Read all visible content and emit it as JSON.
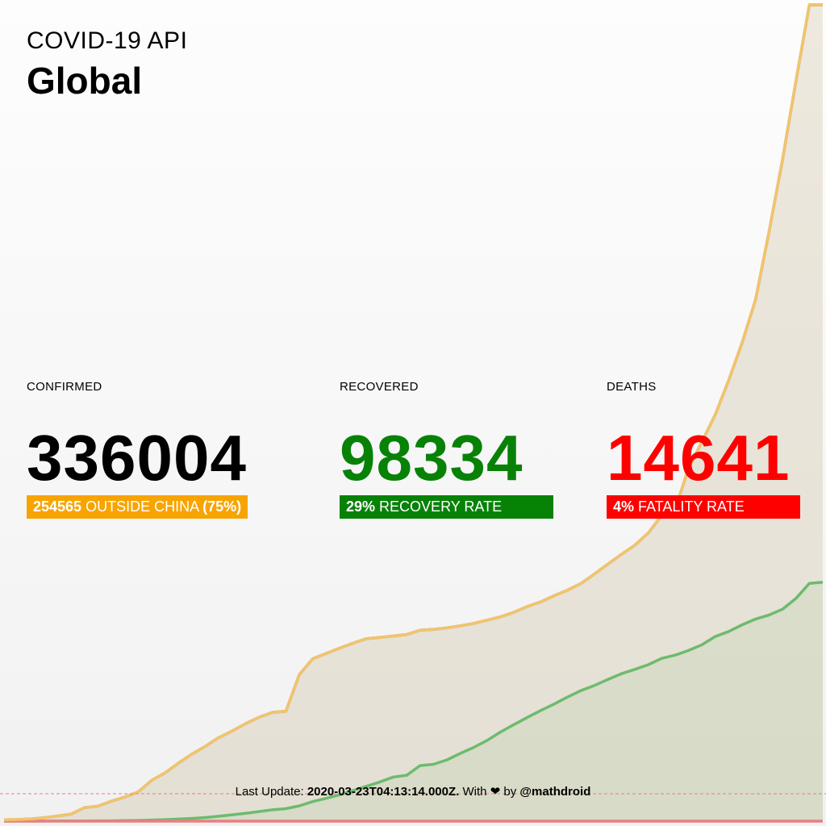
{
  "header": {
    "api_title": "COVID-19 API",
    "region": "Global"
  },
  "stats": {
    "confirmed": {
      "label": "CONFIRMED",
      "value": "336004",
      "badge_value": "254565",
      "badge_text": "OUTSIDE CHINA",
      "badge_pct": "(75%)"
    },
    "recovered": {
      "label": "RECOVERED",
      "value": "98334",
      "badge_value": "29%",
      "badge_text": "RECOVERY RATE"
    },
    "deaths": {
      "label": "DEATHS",
      "value": "14641",
      "badge_value": "4%",
      "badge_text": "FATALITY RATE"
    }
  },
  "footer": {
    "prefix": "Last Update:",
    "timestamp": "2020-03-23T04:13:14.000Z.",
    "with": "With",
    "heart": "❤",
    "by": "by",
    "author": "@mathdroid"
  },
  "colors": {
    "confirmed": "#000000",
    "recovered": "#078207",
    "deaths": "#ff0000",
    "outside_china": "#f7a400",
    "chart_confirmed_line": "#808080",
    "chart_recovered_line": "#6dbb6d",
    "chart_other_line": "#f2c46c",
    "chart_deaths_line": "#e88080"
  },
  "chart_data": {
    "type": "area",
    "series": [
      {
        "values": [
          555,
          654,
          941,
          1434,
          2118,
          2927,
          5578,
          6166,
          8234,
          9927,
          12038,
          16787,
          19881,
          23892,
          27635,
          30817,
          34391,
          37120,
          40150,
          42762,
          44802,
          45221,
          60368,
          66885,
          69030,
          71224,
          73258,
          75136,
          75639,
          76197,
          76823,
          78579,
          78965,
          79568,
          80413,
          81395,
          82754,
          84120,
          86011,
          88369,
          90306,
          92840,
          95120,
          97886,
          101801,
          105847,
          109821,
          113590,
          118620,
          125875,
          128352,
          145205,
          156101,
          167454,
          181574,
          197102,
          214821,
          242570,
          272208,
          304507,
          336004,
          336004
        ]
      },
      {
        "values": [
          28,
          30,
          36,
          39,
          52,
          61,
          107,
          126,
          143,
          222,
          284,
          472,
          623,
          852,
          1124,
          1487,
          2011,
          2616,
          3244,
          3946,
          4683,
          5150,
          6295,
          8058,
          9395,
          10865,
          12583,
          14352,
          16121,
          18177,
          18890,
          22886,
          23394,
          25227,
          27905,
          30384,
          33277,
          36711,
          39782,
          42716,
          45602,
          48228,
          51170,
          53796,
          55865,
          58358,
          60694,
          62494,
          64404,
          67003,
          68324,
          70251,
          72624,
          76034,
          78088,
          80840,
          83207,
          84854,
          87256,
          91675,
          97882,
          98334
        ]
      },
      {
        "values": [
          0,
          0,
          0,
          0,
          0,
          0,
          0,
          0,
          0,
          0,
          0,
          0,
          0,
          0,
          0,
          0,
          0,
          0,
          0,
          0,
          0,
          0,
          0,
          0,
          0,
          0,
          0,
          0,
          0,
          0,
          0,
          0,
          0,
          0,
          0,
          0,
          0,
          0,
          0,
          0,
          0,
          0,
          0,
          0,
          0,
          0,
          0,
          0,
          0,
          0,
          0,
          0,
          0,
          0,
          0,
          0,
          0,
          0,
          0,
          0,
          0,
          0
        ]
      },
      {
        "values": [
          555,
          654,
          941,
          1434,
          2118,
          2927,
          5578,
          6166,
          8234,
          9927,
          12038,
          16787,
          19881,
          23892,
          27635,
          30817,
          34391,
          37120,
          40150,
          42762,
          44802,
          45221,
          60368,
          66885,
          69030,
          71224,
          73258,
          75136,
          75639,
          76197,
          76823,
          78579,
          78965,
          79568,
          80413,
          81395,
          82754,
          84120,
          86011,
          88369,
          90306,
          92840,
          95120,
          97886,
          101801,
          105847,
          109821,
          113590,
          118620,
          125875,
          128352,
          145205,
          156101,
          167454,
          181574,
          197102,
          214821,
          242570,
          272208,
          304507,
          336004,
          336004
        ]
      }
    ],
    "ylim": [
      0,
      336004
    ],
    "grid": false
  }
}
